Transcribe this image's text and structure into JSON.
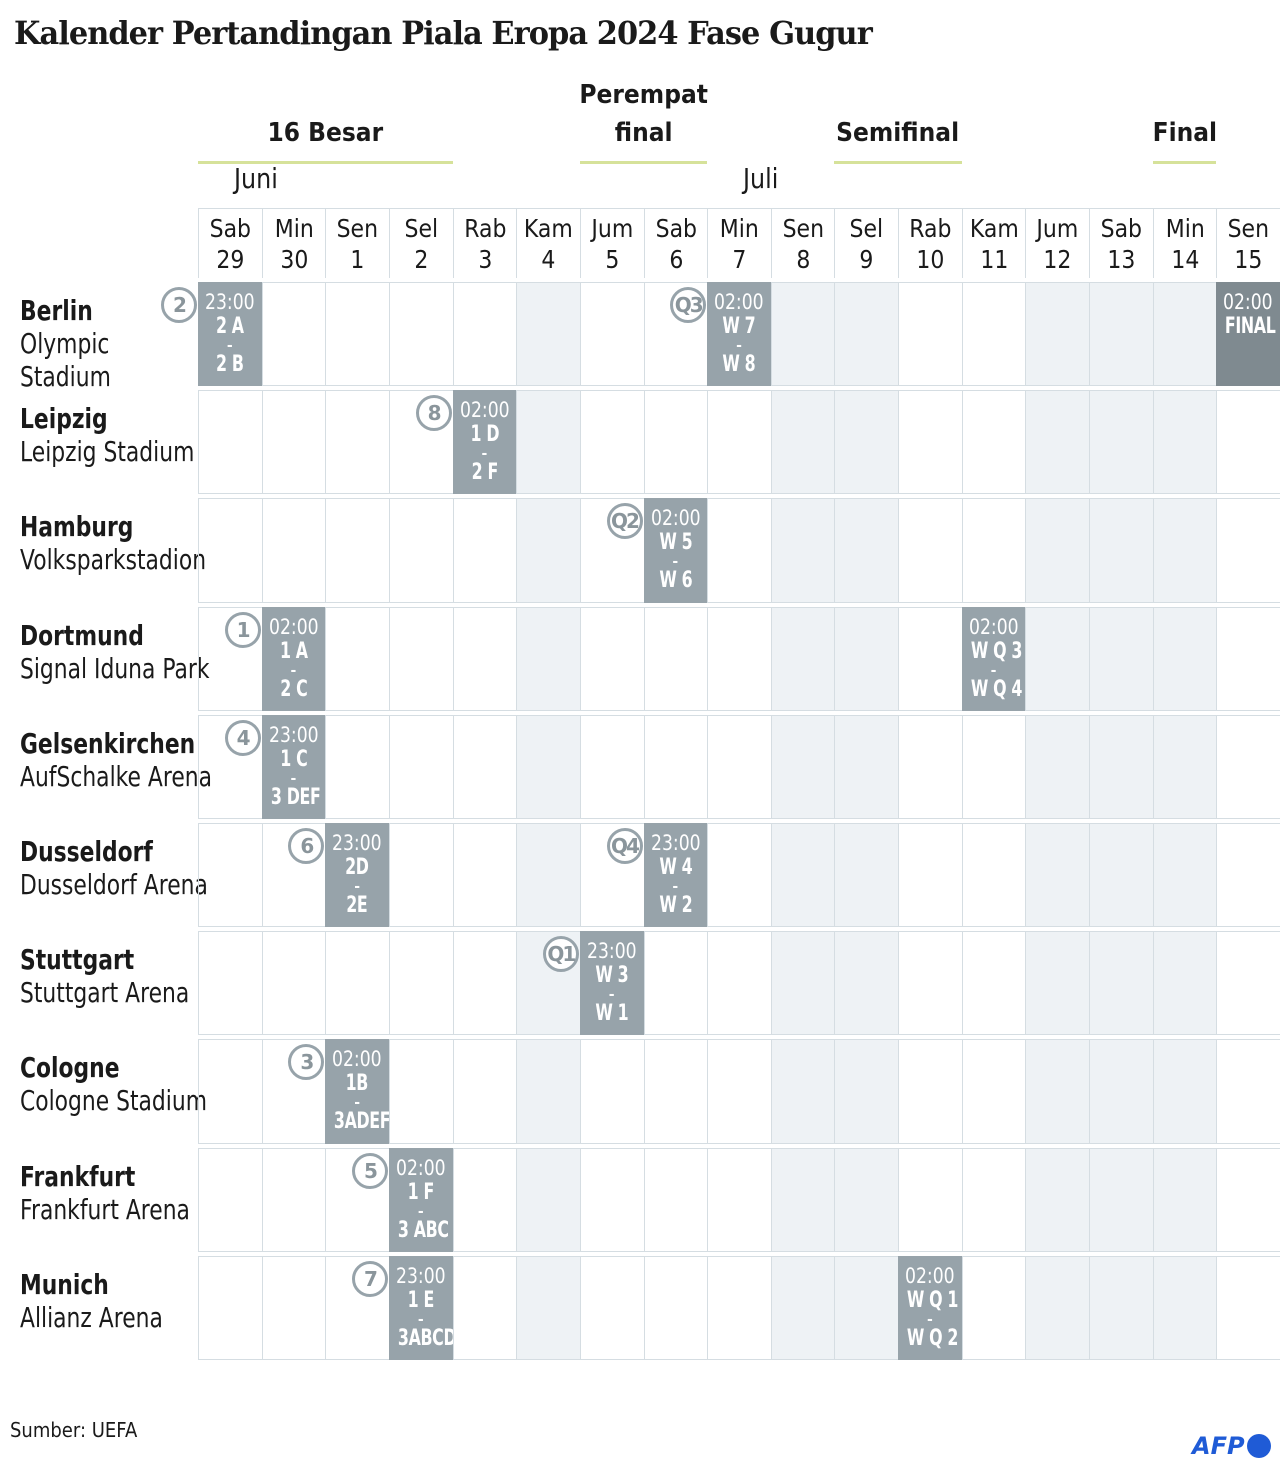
{
  "title": "Kalender Pertandingan Piala Eropa 2024 Fase Gugur",
  "phases": [
    {
      "label": "16 Besar",
      "from": 0,
      "to": 3
    },
    {
      "label": "Perempat final",
      "from": 6,
      "to": 7
    },
    {
      "label": "Semifinal",
      "from": 10,
      "to": 11
    },
    {
      "label": "Final",
      "from": 15,
      "to": 15
    }
  ],
  "months": [
    {
      "label": "Juni",
      "col": 0
    },
    {
      "label": "Juli",
      "col": 8
    }
  ],
  "days": [
    {
      "dow": "Sab",
      "num": "29"
    },
    {
      "dow": "Min",
      "num": "30"
    },
    {
      "dow": "Sen",
      "num": "1"
    },
    {
      "dow": "Sel",
      "num": "2"
    },
    {
      "dow": "Rab",
      "num": "3"
    },
    {
      "dow": "Kam",
      "num": "4"
    },
    {
      "dow": "Jum",
      "num": "5"
    },
    {
      "dow": "Sab",
      "num": "6"
    },
    {
      "dow": "Min",
      "num": "7"
    },
    {
      "dow": "Sen",
      "num": "8"
    },
    {
      "dow": "Sel",
      "num": "9"
    },
    {
      "dow": "Rab",
      "num": "10"
    },
    {
      "dow": "Kam",
      "num": "11"
    },
    {
      "dow": "Jum",
      "num": "12"
    },
    {
      "dow": "Sab",
      "num": "13"
    },
    {
      "dow": "Min",
      "num": "14"
    },
    {
      "dow": "Sen",
      "num": "15"
    }
  ],
  "shaded_days": [
    5,
    9,
    10,
    13,
    14,
    15
  ],
  "venues": [
    {
      "city": "Berlin",
      "stadium": "Olympic Stadium",
      "matches": [
        {
          "day": 0,
          "time": "23:00",
          "team1": "2 A",
          "team2": "2 B",
          "badge": "2"
        },
        {
          "day": 8,
          "time": "02:00",
          "team1": "W 7",
          "team2": "W 8",
          "badge": "Q3"
        },
        {
          "day": 16,
          "time": "02:00",
          "team1": "FINAL",
          "team2": "",
          "badge": "",
          "final": true
        }
      ]
    },
    {
      "city": "Leipzig",
      "stadium": "Leipzig Stadium",
      "matches": [
        {
          "day": 4,
          "time": "02:00",
          "team1": "1 D",
          "team2": "2 F",
          "badge": "8"
        }
      ]
    },
    {
      "city": "Hamburg",
      "stadium": "Volksparkstadion",
      "matches": [
        {
          "day": 7,
          "time": "02:00",
          "team1": "W 5",
          "team2": "W 6",
          "badge": "Q2"
        }
      ]
    },
    {
      "city": "Dortmund",
      "stadium": "Signal Iduna Park",
      "matches": [
        {
          "day": 1,
          "time": "02:00",
          "team1": "1 A",
          "team2": "2 C",
          "badge": "1"
        },
        {
          "day": 12,
          "time": "02:00",
          "team1": "W Q 3",
          "team2": "W Q 4",
          "badge": ""
        }
      ]
    },
    {
      "city": "Gelsenkirchen",
      "stadium": "AufSchalke Arena",
      "matches": [
        {
          "day": 1,
          "time": "23:00",
          "team1": "1 C",
          "team2": "3 DEF",
          "badge": "4"
        }
      ]
    },
    {
      "city": "Dusseldorf",
      "stadium": "Dusseldorf Arena",
      "matches": [
        {
          "day": 2,
          "time": "23:00",
          "team1": "2D",
          "team2": "2E",
          "badge": "6"
        },
        {
          "day": 7,
          "time": "23:00",
          "team1": "W 4",
          "team2": "W 2",
          "badge": "Q4"
        }
      ]
    },
    {
      "city": "Stuttgart",
      "stadium": "Stuttgart Arena",
      "matches": [
        {
          "day": 6,
          "time": "23:00",
          "team1": "W 3",
          "team2": "W 1",
          "badge": "Q1"
        }
      ]
    },
    {
      "city": "Cologne",
      "stadium": "Cologne Stadium",
      "matches": [
        {
          "day": 2,
          "time": "02:00",
          "team1": "1B",
          "team2": "3ADEF",
          "badge": "3"
        }
      ]
    },
    {
      "city": "Frankfurt",
      "stadium": "Frankfurt Arena",
      "matches": [
        {
          "day": 3,
          "time": "02:00",
          "team1": "1 F",
          "team2": "3 ABC",
          "badge": "5"
        }
      ]
    },
    {
      "city": "Munich",
      "stadium": "Allianz Arena",
      "matches": [
        {
          "day": 3,
          "time": "23:00",
          "team1": "1 E",
          "team2": "3ABCD",
          "badge": "7"
        },
        {
          "day": 11,
          "time": "02:00",
          "team1": "W Q 1",
          "team2": "W Q 2",
          "badge": ""
        }
      ]
    }
  ],
  "source": "Sumber: UEFA",
  "logo": "AFP",
  "colors": {
    "match": "#97a3aa",
    "final": "#7f8a90",
    "shade": "#eef2f5",
    "phase_underline": "#d6e29a",
    "logo": "#1f5bd6"
  }
}
